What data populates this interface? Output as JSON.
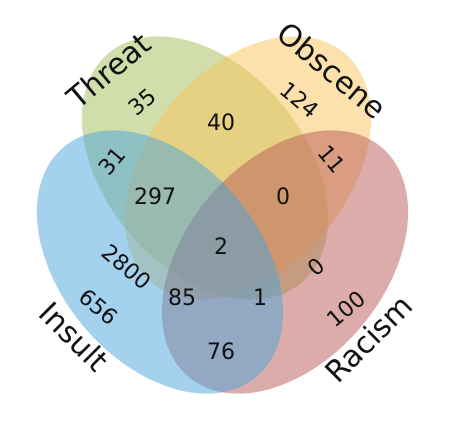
{
  "sets": [
    {
      "key": "threat",
      "label": "Threat",
      "color": "#a4be5a"
    },
    {
      "key": "obscene",
      "label": "Obscene",
      "color": "#fbc35a"
    },
    {
      "key": "racism",
      "label": "Racism",
      "color": "#b85a55"
    },
    {
      "key": "insult",
      "label": "Insult",
      "color": "#4aa3dc"
    }
  ],
  "regions": {
    "threat_only": "35",
    "obscene_only": "124",
    "racism_only": "100",
    "insult_only": "656",
    "threat_obscene": "40",
    "threat_insult": "2800",
    "obscene_racism": "11",
    "insult_racism": "76",
    "threat_obscene_insult": "297",
    "obscene_racism_insult": "1",
    "threat_obscene_racism": "0",
    "threat_racism_insult": "85",
    "threat_racism": "0",
    "obscene_insult": "31",
    "obscene_racism_only_b": "0",
    "all_four": "2"
  }
}
